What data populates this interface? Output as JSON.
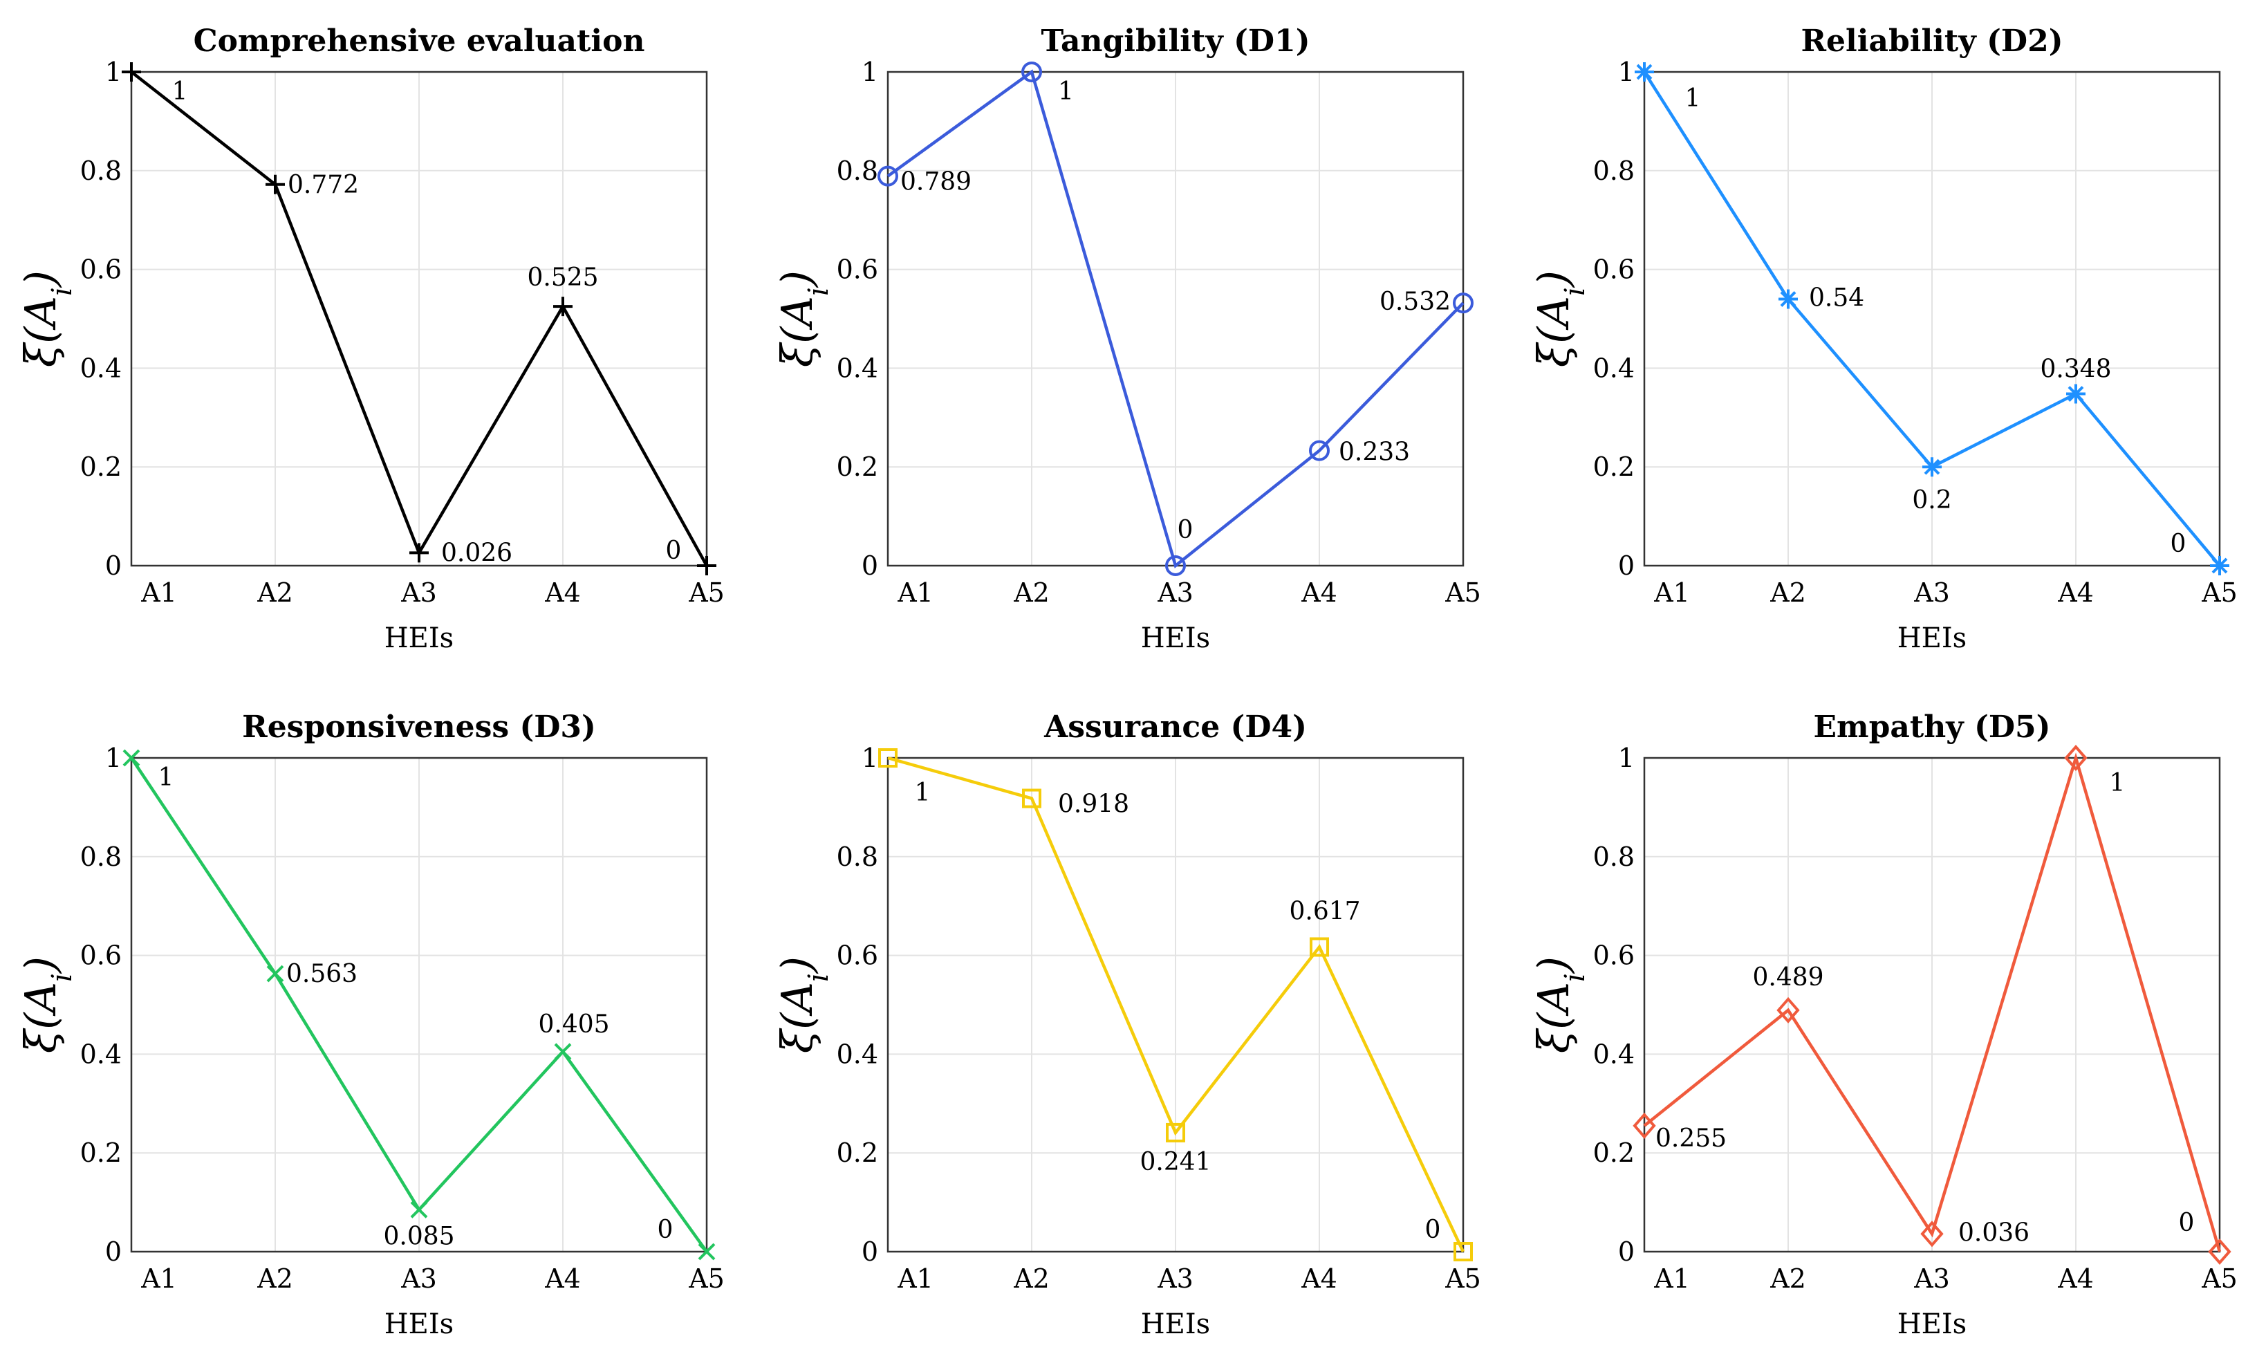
{
  "chart_data": [
    {
      "type": "line",
      "title": "Comprehensive evaluation",
      "xlabel": "HEIs",
      "ylabel": "ξ(A_i)",
      "categories": [
        "A1",
        "A2",
        "A3",
        "A4",
        "A5"
      ],
      "values": [
        1,
        0.772,
        0.026,
        0.525,
        0
      ],
      "labels": [
        "1",
        "0.772",
        "0.026",
        "0.525",
        "0"
      ],
      "ylim": [
        0,
        1
      ],
      "yticks": [
        "0",
        "0.2",
        "0.4",
        "0.6",
        "0.8",
        "1"
      ],
      "color": "#000000",
      "marker": "plus",
      "grid": true
    },
    {
      "type": "line",
      "title": "Tangibility (D1)",
      "xlabel": "HEIs",
      "ylabel": "ξ(A_i)",
      "categories": [
        "A1",
        "A2",
        "A3",
        "A4",
        "A5"
      ],
      "values": [
        0.789,
        1,
        0,
        0.233,
        0.532
      ],
      "labels": [
        "0.789",
        "1",
        "0",
        "0.233",
        "0.532"
      ],
      "ylim": [
        0,
        1
      ],
      "yticks": [
        "0",
        "0.2",
        "0.4",
        "0.6",
        "0.8",
        "1"
      ],
      "color": "#3b5bdb",
      "marker": "circle",
      "grid": true
    },
    {
      "type": "line",
      "title": "Reliability (D2)",
      "xlabel": "HEIs",
      "ylabel": "ξ(A_i)",
      "categories": [
        "A1",
        "A2",
        "A3",
        "A4",
        "A5"
      ],
      "values": [
        1,
        0.54,
        0.2,
        0.348,
        0
      ],
      "labels": [
        "1",
        "0.54",
        "0.2",
        "0.348",
        "0"
      ],
      "ylim": [
        0,
        1
      ],
      "yticks": [
        "0",
        "0.2",
        "0.4",
        "0.6",
        "0.8",
        "1"
      ],
      "color": "#1e90ff",
      "marker": "asterisk",
      "grid": true
    },
    {
      "type": "line",
      "title": "Responsiveness (D3)",
      "xlabel": "HEIs",
      "ylabel": "ξ(A_i)",
      "categories": [
        "A1",
        "A2",
        "A3",
        "A4",
        "A5"
      ],
      "values": [
        1,
        0.563,
        0.085,
        0.405,
        0
      ],
      "labels": [
        "1",
        "0.563",
        "0.085",
        "0.405",
        "0"
      ],
      "ylim": [
        0,
        1
      ],
      "yticks": [
        "0",
        "0.2",
        "0.4",
        "0.6",
        "0.8",
        "1"
      ],
      "color": "#22c55e",
      "marker": "x",
      "grid": true
    },
    {
      "type": "line",
      "title": "Assurance (D4)",
      "xlabel": "HEIs",
      "ylabel": "ξ(A_i)",
      "categories": [
        "A1",
        "A2",
        "A3",
        "A4",
        "A5"
      ],
      "values": [
        1,
        0.918,
        0.241,
        0.617,
        0
      ],
      "labels": [
        "1",
        "0.918",
        "0.241",
        "0.617",
        "0"
      ],
      "ylim": [
        0,
        1
      ],
      "yticks": [
        "0",
        "0.2",
        "0.4",
        "0.6",
        "0.8",
        "1"
      ],
      "color": "#f5cc0a",
      "marker": "square",
      "grid": true
    },
    {
      "type": "line",
      "title": "Empathy (D5)",
      "xlabel": "HEIs",
      "ylabel": "ξ(A_i)",
      "categories": [
        "A1",
        "A2",
        "A3",
        "A4",
        "A5"
      ],
      "values": [
        0.255,
        0.489,
        0.036,
        1,
        0
      ],
      "labels": [
        "0.255",
        "0.489",
        "0.036",
        "1",
        "0"
      ],
      "ylim": [
        0,
        1
      ],
      "yticks": [
        "0",
        "0.2",
        "0.4",
        "0.6",
        "0.8",
        "1"
      ],
      "color": "#f05a3c",
      "marker": "diamond",
      "grid": true
    }
  ]
}
